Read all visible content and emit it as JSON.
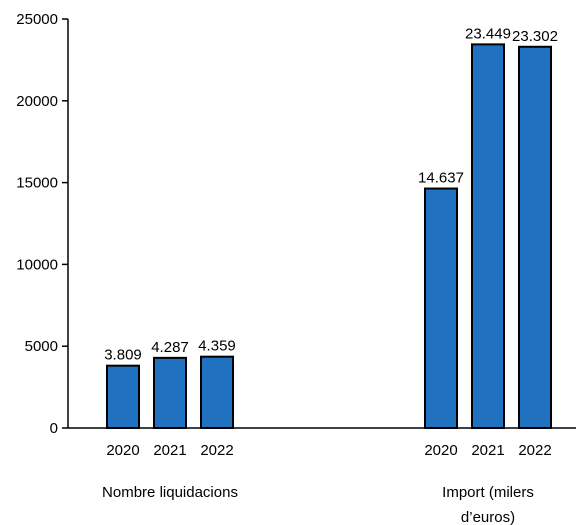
{
  "chart_data": {
    "type": "bar",
    "groups": [
      {
        "label_lines": [
          "Nombre liquidacions"
        ],
        "categories": [
          "2020",
          "2021",
          "2022"
        ],
        "values": [
          3809,
          4287,
          4359
        ],
        "value_labels": [
          "3.809",
          "4.287",
          "4.359"
        ]
      },
      {
        "label_lines": [
          "Import (milers",
          "d’euros)"
        ],
        "categories": [
          "2020",
          "2021",
          "2022"
        ],
        "values": [
          14637,
          23449,
          23302
        ],
        "value_labels": [
          "14.637",
          "23.449",
          "23.302"
        ]
      }
    ],
    "yticks": [
      "0",
      "5000",
      "10000",
      "15000",
      "20000",
      "25000"
    ],
    "ylim": [
      0,
      25000
    ],
    "grid": false,
    "legend": "none",
    "bar_color": "#2171c1",
    "bar_edge_color": "#000000"
  }
}
